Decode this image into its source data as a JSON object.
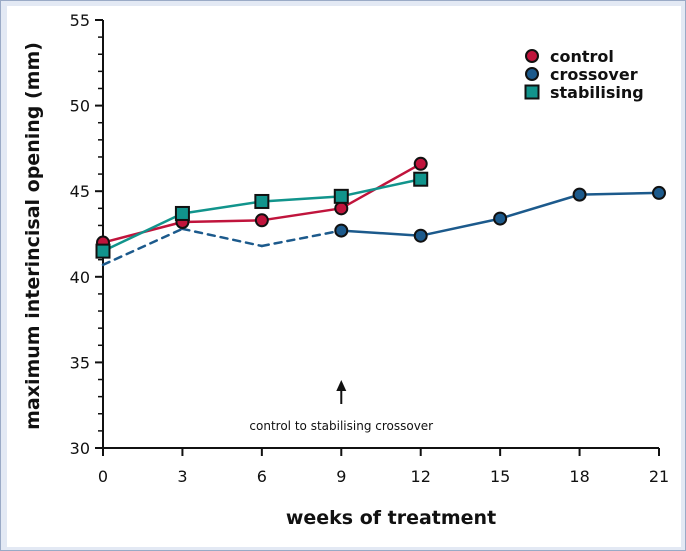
{
  "chart_data": {
    "type": "line",
    "title": "",
    "xlabel": "weeks of treatment",
    "ylabel": "maximum interincisal opening (mm)",
    "xlim": [
      0,
      21
    ],
    "ylim": [
      30,
      55
    ],
    "x_ticks": [
      "0",
      "3",
      "6",
      "9",
      "12",
      "15",
      "18",
      "21"
    ],
    "y_ticks": [
      "30",
      "35",
      "40",
      "45",
      "50",
      "55"
    ],
    "legend_position": "top-right",
    "series": [
      {
        "name": "control",
        "marker": "circle",
        "color": "#c0143c",
        "line_color": "#c0143c",
        "points": [
          [
            0,
            42.0
          ],
          [
            3,
            43.2
          ],
          [
            6,
            43.3
          ],
          [
            9,
            44.0
          ],
          [
            12,
            46.6
          ]
        ],
        "dashed_from_index": null
      },
      {
        "name": "crossover",
        "marker": "circle",
        "color": "#1c5a8c",
        "line_color": "#1c5a8c",
        "points": [
          [
            0,
            40.7
          ],
          [
            3,
            42.8
          ],
          [
            6,
            41.8
          ],
          [
            9,
            42.7
          ],
          [
            12,
            42.4
          ],
          [
            15,
            43.4
          ],
          [
            18,
            44.8
          ],
          [
            21,
            44.9
          ]
        ],
        "dashed_segments": [
          [
            0,
            1
          ],
          [
            1,
            2
          ],
          [
            2,
            3
          ]
        ],
        "marker_indices": [
          3,
          4,
          5,
          6,
          7
        ]
      },
      {
        "name": "stabilising",
        "marker": "square",
        "color": "#11948c",
        "line_color": "#11948c",
        "points": [
          [
            0,
            41.5
          ],
          [
            3,
            43.7
          ],
          [
            6,
            44.4
          ],
          [
            9,
            44.7
          ],
          [
            12,
            45.7
          ]
        ],
        "dashed_from_index": null
      }
    ],
    "annotations": [
      {
        "text": "control to stabilising crossover",
        "x": 9,
        "arrow": true
      }
    ]
  },
  "colors": {
    "frame_background": "#e3e9f4",
    "frame_border": "#9aaac6",
    "axis": "#111111"
  }
}
